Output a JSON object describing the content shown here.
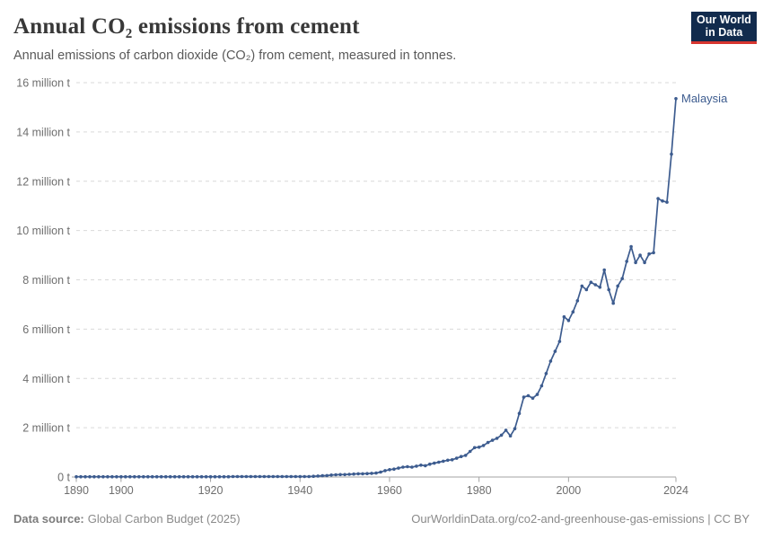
{
  "header": {
    "title": "Annual CO₂ emissions from cement",
    "subtitle": "Annual emissions of carbon dioxide (CO₂) from cement, measured in tonnes.",
    "logo": {
      "line1": "Our World",
      "line2": "in Data"
    }
  },
  "footer": {
    "source_label": "Data source:",
    "source_value": "Global Carbon Budget (2025)",
    "rights": "OurWorldinData.org/co2-and-greenhouse-gas-emissions | CC BY"
  },
  "colors": {
    "series": "#3d5c8f",
    "grid": "#d9d9d9",
    "axis": "#a3a3a3",
    "tick_label": "#6e6e6e",
    "logo_bg": "#122b4d",
    "logo_accent": "#d7352f"
  },
  "chart_data": {
    "type": "line",
    "title": "Annual CO₂ emissions from cement",
    "xlabel": "",
    "ylabel": "",
    "unit": "tonnes of CO₂",
    "grid": "horizontal-dashed",
    "legend": "end-of-line-label",
    "xlim": [
      1890,
      2024
    ],
    "ylim_million_t": [
      0,
      16
    ],
    "x_ticks": [
      1890,
      1900,
      1920,
      1940,
      1960,
      1980,
      2000,
      2024
    ],
    "y_ticks": [
      {
        "value_million_t": 16,
        "label": "16 million t"
      },
      {
        "value_million_t": 14,
        "label": "14 million t"
      },
      {
        "value_million_t": 12,
        "label": "12 million t"
      },
      {
        "value_million_t": 10,
        "label": "10 million t"
      },
      {
        "value_million_t": 8,
        "label": "8 million t"
      },
      {
        "value_million_t": 6,
        "label": "6 million t"
      },
      {
        "value_million_t": 4,
        "label": "4 million t"
      },
      {
        "value_million_t": 2,
        "label": "2 million t"
      },
      {
        "value_million_t": 0,
        "label": "0 t"
      }
    ],
    "series": [
      {
        "name": "Malaysia",
        "points_year_million_t": [
          [
            1890,
            0.01
          ],
          [
            1891,
            0.01
          ],
          [
            1892,
            0.01
          ],
          [
            1893,
            0.01
          ],
          [
            1894,
            0.01
          ],
          [
            1895,
            0.01
          ],
          [
            1896,
            0.01
          ],
          [
            1897,
            0.01
          ],
          [
            1898,
            0.01
          ],
          [
            1899,
            0.01
          ],
          [
            1900,
            0.01
          ],
          [
            1901,
            0.01
          ],
          [
            1902,
            0.01
          ],
          [
            1903,
            0.01
          ],
          [
            1904,
            0.01
          ],
          [
            1905,
            0.01
          ],
          [
            1906,
            0.01
          ],
          [
            1907,
            0.01
          ],
          [
            1908,
            0.01
          ],
          [
            1909,
            0.01
          ],
          [
            1910,
            0.01
          ],
          [
            1911,
            0.01
          ],
          [
            1912,
            0.01
          ],
          [
            1913,
            0.01
          ],
          [
            1914,
            0.01
          ],
          [
            1915,
            0.01
          ],
          [
            1916,
            0.01
          ],
          [
            1917,
            0.01
          ],
          [
            1918,
            0.01
          ],
          [
            1919,
            0.01
          ],
          [
            1920,
            0.01
          ],
          [
            1921,
            0.01
          ],
          [
            1922,
            0.01
          ],
          [
            1923,
            0.01
          ],
          [
            1924,
            0.01
          ],
          [
            1925,
            0.02
          ],
          [
            1926,
            0.02
          ],
          [
            1927,
            0.02
          ],
          [
            1928,
            0.02
          ],
          [
            1929,
            0.02
          ],
          [
            1930,
            0.02
          ],
          [
            1931,
            0.02
          ],
          [
            1932,
            0.02
          ],
          [
            1933,
            0.02
          ],
          [
            1934,
            0.02
          ],
          [
            1935,
            0.02
          ],
          [
            1936,
            0.02
          ],
          [
            1937,
            0.02
          ],
          [
            1938,
            0.02
          ],
          [
            1939,
            0.02
          ],
          [
            1940,
            0.02
          ],
          [
            1941,
            0.02
          ],
          [
            1942,
            0.02
          ],
          [
            1943,
            0.03
          ],
          [
            1944,
            0.04
          ],
          [
            1945,
            0.05
          ],
          [
            1946,
            0.06
          ],
          [
            1947,
            0.08
          ],
          [
            1948,
            0.09
          ],
          [
            1949,
            0.1
          ],
          [
            1950,
            0.1
          ],
          [
            1951,
            0.11
          ],
          [
            1952,
            0.12
          ],
          [
            1953,
            0.13
          ],
          [
            1954,
            0.13
          ],
          [
            1955,
            0.14
          ],
          [
            1956,
            0.15
          ],
          [
            1957,
            0.16
          ],
          [
            1958,
            0.2
          ],
          [
            1959,
            0.26
          ],
          [
            1960,
            0.3
          ],
          [
            1961,
            0.32
          ],
          [
            1962,
            0.36
          ],
          [
            1963,
            0.4
          ],
          [
            1964,
            0.42
          ],
          [
            1965,
            0.4
          ],
          [
            1966,
            0.44
          ],
          [
            1967,
            0.48
          ],
          [
            1968,
            0.46
          ],
          [
            1969,
            0.52
          ],
          [
            1970,
            0.56
          ],
          [
            1971,
            0.6
          ],
          [
            1972,
            0.64
          ],
          [
            1973,
            0.68
          ],
          [
            1974,
            0.7
          ],
          [
            1975,
            0.76
          ],
          [
            1976,
            0.83
          ],
          [
            1977,
            0.88
          ],
          [
            1978,
            1.04
          ],
          [
            1979,
            1.19
          ],
          [
            1980,
            1.21
          ],
          [
            1981,
            1.28
          ],
          [
            1982,
            1.4
          ],
          [
            1983,
            1.49
          ],
          [
            1984,
            1.57
          ],
          [
            1985,
            1.7
          ],
          [
            1986,
            1.9
          ],
          [
            1987,
            1.67
          ],
          [
            1988,
            1.96
          ],
          [
            1989,
            2.58
          ],
          [
            1990,
            3.24
          ],
          [
            1991,
            3.3
          ],
          [
            1992,
            3.2
          ],
          [
            1993,
            3.35
          ],
          [
            1994,
            3.7
          ],
          [
            1995,
            4.2
          ],
          [
            1996,
            4.7
          ],
          [
            1997,
            5.1
          ],
          [
            1998,
            5.5
          ],
          [
            1999,
            6.5
          ],
          [
            2000,
            6.35
          ],
          [
            2001,
            6.7
          ],
          [
            2002,
            7.15
          ],
          [
            2003,
            7.75
          ],
          [
            2004,
            7.6
          ],
          [
            2005,
            7.9
          ],
          [
            2006,
            7.8
          ],
          [
            2007,
            7.7
          ],
          [
            2008,
            8.4
          ],
          [
            2009,
            7.6
          ],
          [
            2010,
            7.05
          ],
          [
            2011,
            7.75
          ],
          [
            2012,
            8.05
          ],
          [
            2013,
            8.75
          ],
          [
            2014,
            9.35
          ],
          [
            2015,
            8.7
          ],
          [
            2016,
            9.0
          ],
          [
            2017,
            8.7
          ],
          [
            2018,
            9.05
          ],
          [
            2019,
            9.1
          ],
          [
            2020,
            11.3
          ],
          [
            2021,
            11.2
          ],
          [
            2022,
            11.15
          ],
          [
            2023,
            13.1
          ],
          [
            2024,
            15.35
          ]
        ]
      }
    ]
  }
}
